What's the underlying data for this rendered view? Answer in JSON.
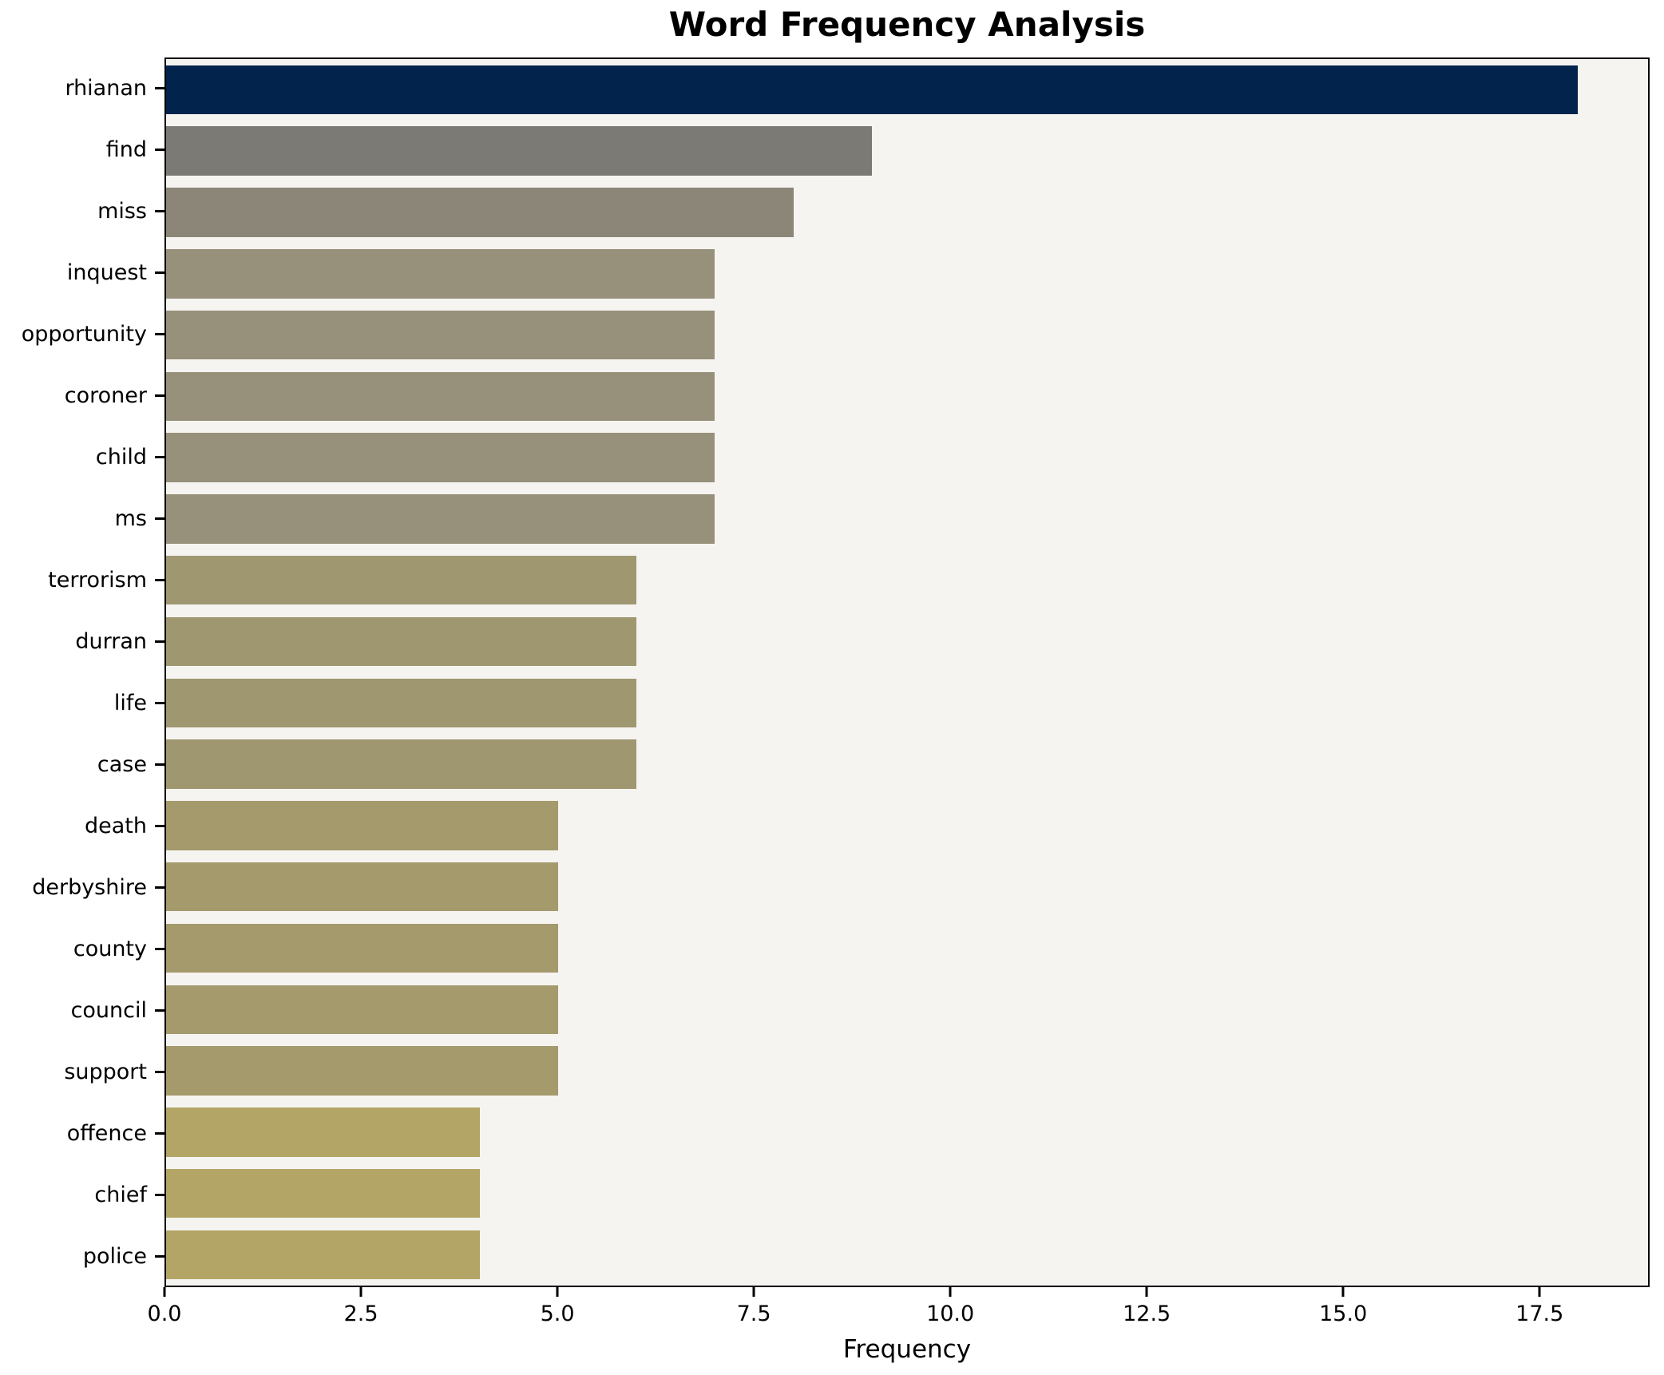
{
  "title": "Word Frequency Analysis",
  "chart_data": {
    "type": "bar",
    "orientation": "horizontal",
    "title": "Word Frequency Analysis",
    "xlabel": "Frequency",
    "ylabel": "",
    "categories": [
      "rhianan",
      "find",
      "miss",
      "inquest",
      "opportunity",
      "coroner",
      "child",
      "ms",
      "terrorism",
      "durran",
      "life",
      "case",
      "death",
      "derbyshire",
      "county",
      "council",
      "support",
      "offence",
      "chief",
      "police"
    ],
    "values": [
      18,
      9,
      8,
      7,
      7,
      7,
      7,
      7,
      6,
      6,
      6,
      6,
      5,
      5,
      5,
      5,
      5,
      4,
      4,
      4
    ],
    "bar_colors": [
      "#02234c",
      "#7b7a74",
      "#8b8677",
      "#97907a",
      "#97907a",
      "#97907a",
      "#97907a",
      "#97907a",
      "#9f9770",
      "#9f9770",
      "#9f9770",
      "#9f9770",
      "#a49a6c",
      "#a49a6c",
      "#a49a6c",
      "#a49a6c",
      "#a49a6c",
      "#b2a566",
      "#b2a566",
      "#b2a566"
    ],
    "xlim": [
      0,
      18.9
    ],
    "xticks": [
      0.0,
      2.5,
      5.0,
      7.5,
      10.0,
      12.5,
      15.0,
      17.5
    ],
    "xtick_labels": [
      "0.0",
      "2.5",
      "5.0",
      "7.5",
      "10.0",
      "12.5",
      "15.0",
      "17.5"
    ],
    "grid": false,
    "legend": null,
    "plot_background": "#f5f4f1",
    "figure_background": "#ffffff",
    "spine_color": "#000000",
    "title_color": "#000000"
  }
}
